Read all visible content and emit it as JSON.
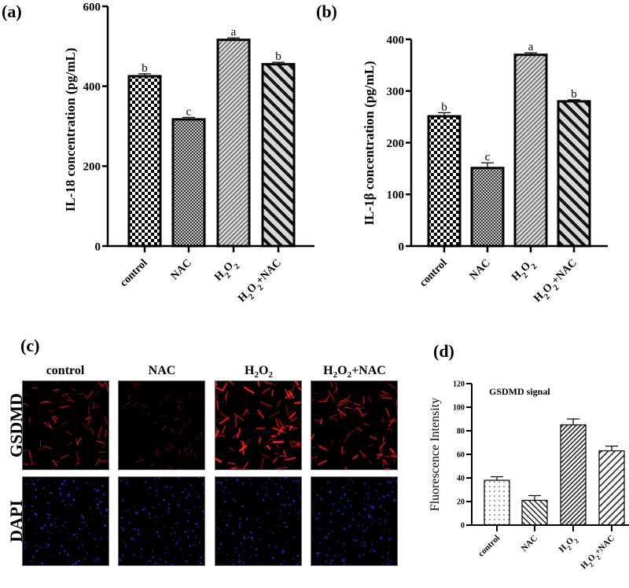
{
  "panels": {
    "a": {
      "label": "(a)"
    },
    "b": {
      "label": "(b)"
    },
    "c": {
      "label": "(c)"
    },
    "d": {
      "label": "(d)"
    }
  },
  "chart_data": [
    {
      "id": "a",
      "type": "bar",
      "title": "",
      "categories": [
        "control",
        "NAC",
        "H2O2",
        "H2O2+NAC"
      ],
      "category_display": [
        "control",
        "NAC",
        "H₂O₂",
        "H₂O₂+NAC"
      ],
      "values": [
        425,
        317,
        516,
        455
      ],
      "errors": [
        6,
        5,
        5,
        5
      ],
      "significance_letters": [
        "b",
        "c",
        "a",
        "b"
      ],
      "patterns": [
        "checker-large",
        "checker-small",
        "diag-fine",
        "diag-bold"
      ],
      "xlabel": "",
      "ylabel": "IL-18 concentration (pg/mL)",
      "ylim": [
        0,
        600
      ],
      "yticks": [
        0,
        200,
        400,
        600
      ],
      "grid": false,
      "legend": null
    },
    {
      "id": "b",
      "type": "bar",
      "title": "",
      "categories": [
        "control",
        "NAC",
        "H2O2",
        "H2O2+NAC"
      ],
      "category_display": [
        "control",
        "NAC",
        "H₂O₂",
        "H₂O₂+NAC"
      ],
      "values": [
        251,
        151,
        370,
        280
      ],
      "errors": [
        7,
        10,
        4,
        3
      ],
      "significance_letters": [
        "b",
        "c",
        "a",
        "b"
      ],
      "patterns": [
        "checker-large",
        "checker-small",
        "diag-fine",
        "diag-bold"
      ],
      "xlabel": "",
      "ylabel": "IL-1β concentration (pg/mL)",
      "ylim": [
        0,
        400
      ],
      "yticks": [
        0,
        100,
        200,
        300,
        400
      ],
      "grid": false,
      "legend": null
    },
    {
      "id": "d",
      "type": "bar",
      "title": "GSDMD signal",
      "categories": [
        "control",
        "NAC",
        "H2O2",
        "H2O2+NAC"
      ],
      "category_display": [
        "control",
        "NAC",
        "H₂O₂",
        "H₂O₂+NAC"
      ],
      "values": [
        38,
        21,
        85,
        63
      ],
      "errors": [
        3,
        4,
        5,
        4
      ],
      "patterns": [
        "dots",
        "diag-back",
        "crosshatch-diag",
        "diag-forward"
      ],
      "xlabel": "",
      "ylabel": "Fluorescence Intensity",
      "ylim": [
        0,
        120
      ],
      "yticks": [
        0,
        20,
        40,
        60,
        80,
        100,
        120
      ],
      "grid": false,
      "legend": null
    }
  ],
  "micrographs": {
    "columns": [
      "control",
      "NAC",
      "H₂O₂",
      "H₂O₂+NAC"
    ],
    "rows": [
      "GSDMD",
      "DAPI"
    ],
    "row_colors": {
      "GSDMD": "#ff1a1a",
      "DAPI": "#2233ff"
    },
    "gsdmd_intensity": [
      0.55,
      0.2,
      1.0,
      0.75
    ]
  }
}
